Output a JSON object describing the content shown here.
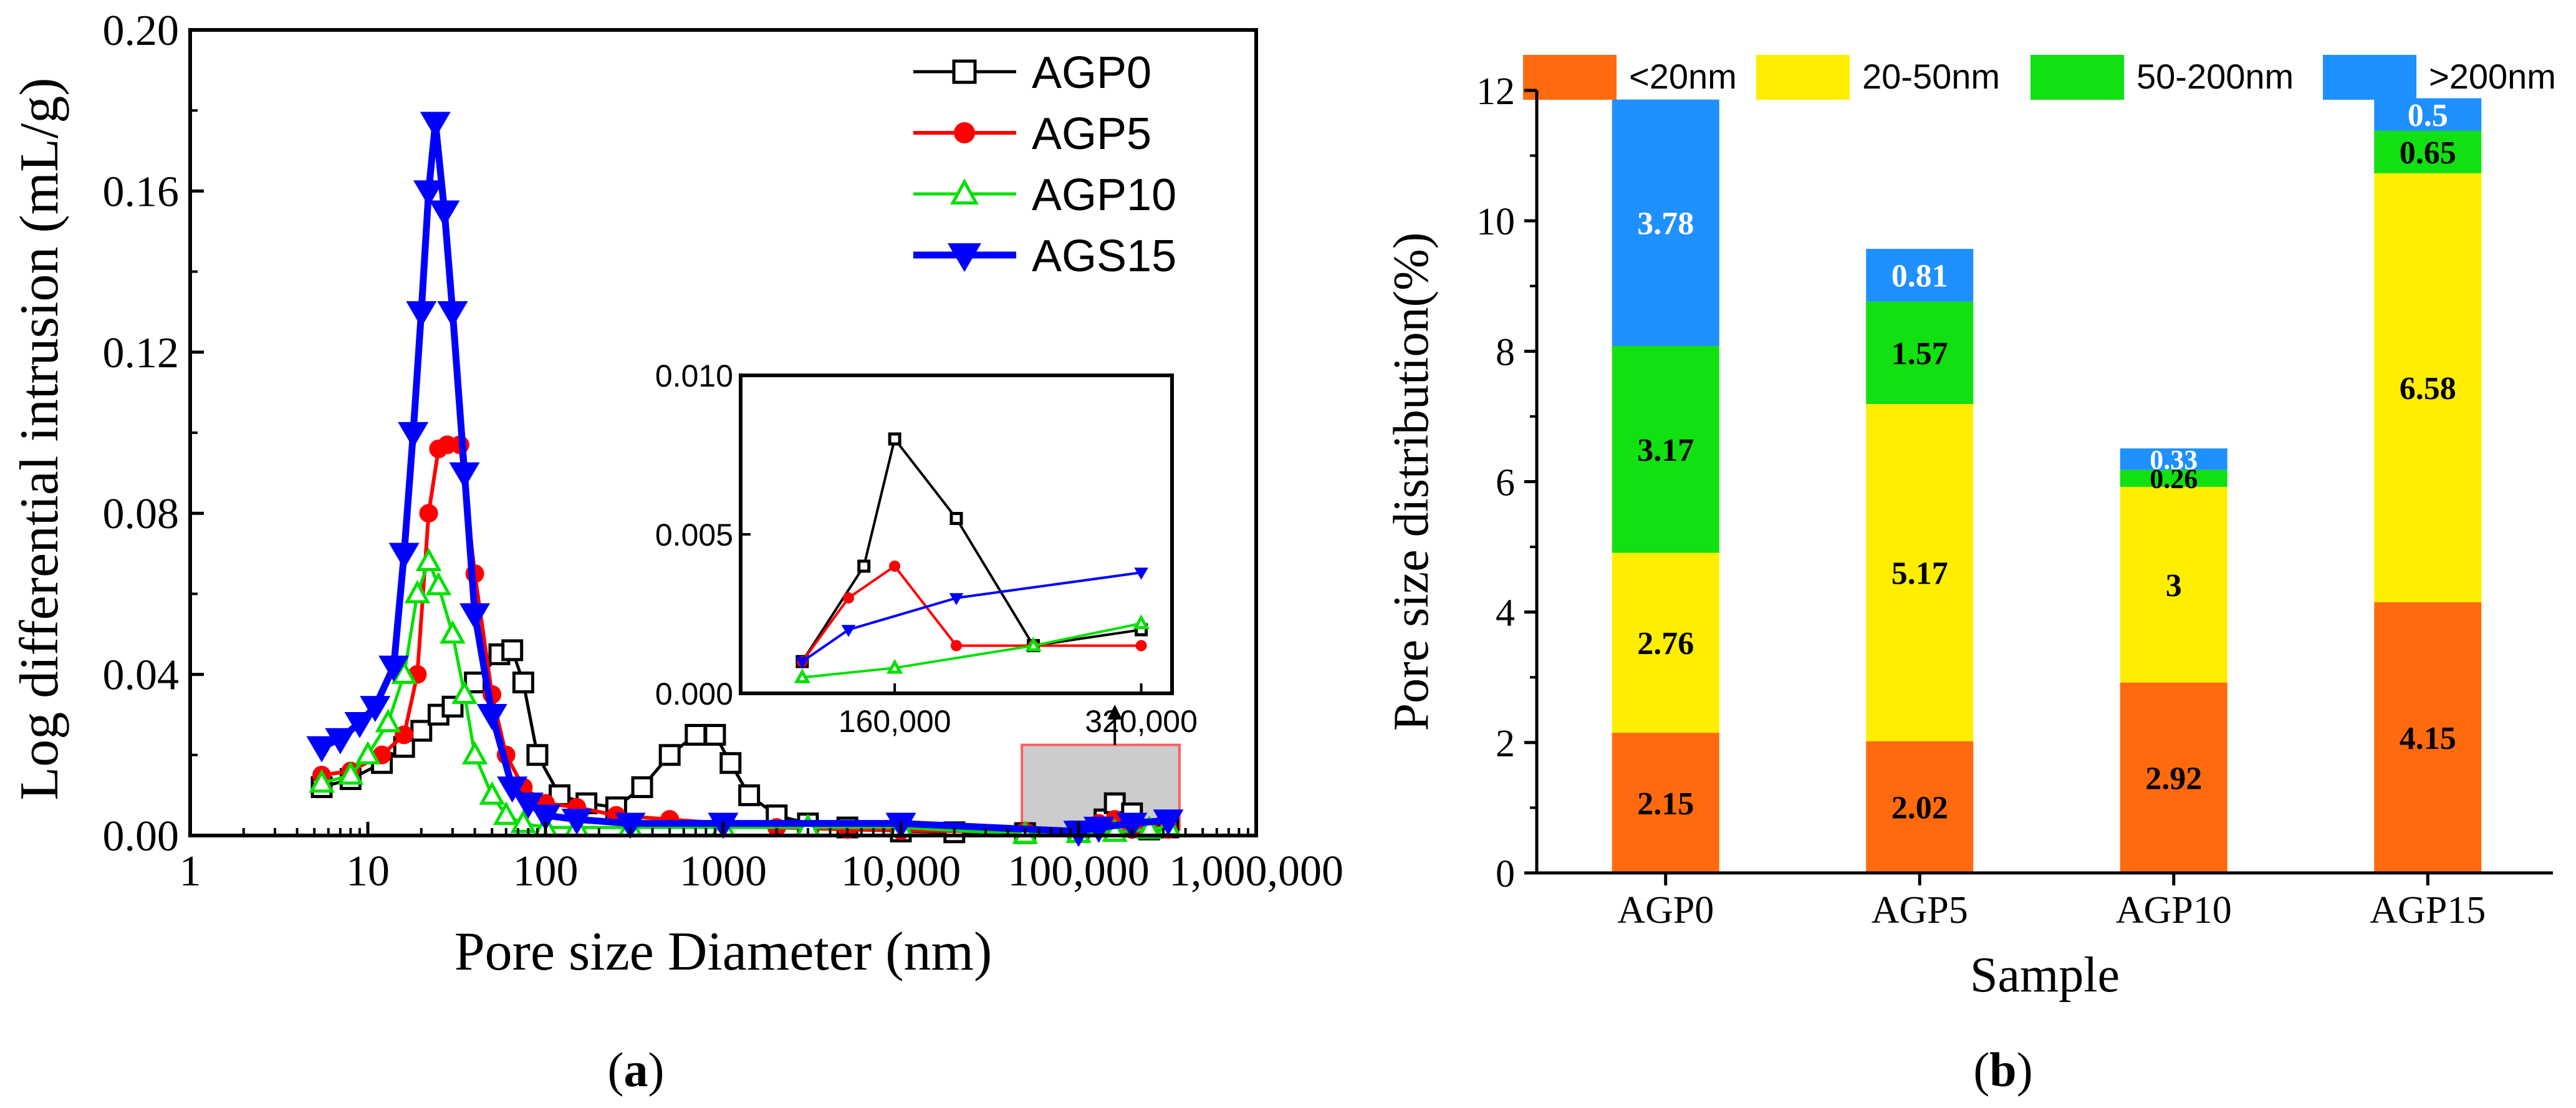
{
  "colors": {
    "AGP0": "#000000",
    "AGP5": "#ff0000",
    "AGP10": "#00e000",
    "AGS15": "#0000ff",
    "lt20": "#ff6a0e",
    "b20_50": "#ffee00",
    "b50_200": "#11e011",
    "gt200": "#1e90ff",
    "highlight_fill": "#cccccc",
    "highlight_stroke": "#ff6060"
  },
  "chart_data": [
    {
      "panel": "(a)",
      "panel_letter": "a",
      "type": "line",
      "title": "",
      "xlabel": "Pore size Diameter (nm)",
      "ylabel": "Log differential intrusion (mL/g)",
      "xscale": "log",
      "xlim": [
        1,
        1000000
      ],
      "ylim": [
        0,
        0.2
      ],
      "grid": false,
      "legend_position": "top-right",
      "x_tick_labels": [
        "1",
        "10",
        "100",
        "1000",
        "10,000",
        "100,000",
        "1,000,000"
      ],
      "y_tick_labels": [
        "0.00",
        "0.04",
        "0.08",
        "0.12",
        "0.16",
        "0.20"
      ],
      "series": [
        {
          "name": "AGP0",
          "marker": "open-square",
          "x": [
            5.5,
            8,
            12,
            16,
            20,
            25,
            30,
            40,
            55,
            65,
            75,
            90,
            120,
            170,
            250,
            350,
            500,
            700,
            900,
            1100,
            1400,
            2000,
            3000,
            5000,
            10000,
            20000,
            50000,
            100000,
            140000,
            160000,
            200000,
            250000,
            320000
          ],
          "y": [
            0.012,
            0.014,
            0.018,
            0.022,
            0.026,
            0.03,
            0.032,
            0.038,
            0.045,
            0.046,
            0.038,
            0.02,
            0.01,
            0.008,
            0.007,
            0.012,
            0.02,
            0.025,
            0.025,
            0.018,
            0.01,
            0.005,
            0.003,
            0.002,
            0.001,
            0.0008,
            0.0006,
            0.001,
            0.004,
            0.008,
            0.0055,
            0.0015,
            0.002
          ]
        },
        {
          "name": "AGP5",
          "marker": "filled-circle",
          "x": [
            5.5,
            8,
            12,
            16,
            19,
            22,
            25,
            28,
            33,
            40,
            50,
            60,
            75,
            100,
            150,
            250,
            500,
            1000,
            2000,
            5000,
            10000,
            50000,
            100000,
            130000,
            160000,
            200000,
            250000,
            320000
          ],
          "y": [
            0.015,
            0.016,
            0.02,
            0.025,
            0.04,
            0.08,
            0.096,
            0.097,
            0.097,
            0.065,
            0.035,
            0.02,
            0.012,
            0.008,
            0.007,
            0.005,
            0.004,
            0.003,
            0.002,
            0.0015,
            0.0012,
            0.001,
            0.001,
            0.003,
            0.004,
            0.0015,
            0.0015,
            0.0015
          ]
        },
        {
          "name": "AGP10",
          "marker": "open-triangle",
          "x": [
            5.5,
            8,
            10,
            13,
            16,
            19,
            22,
            25,
            30,
            35,
            40,
            50,
            60,
            75,
            100,
            150,
            300,
            1000,
            3000,
            10000,
            50000,
            100000,
            160000,
            250000,
            320000
          ],
          "y": [
            0.013,
            0.015,
            0.02,
            0.028,
            0.04,
            0.06,
            0.068,
            0.062,
            0.05,
            0.035,
            0.02,
            0.01,
            0.005,
            0.003,
            0.002,
            0.002,
            0.002,
            0.002,
            0.002,
            0.002,
            0.0003,
            0.0005,
            0.0008,
            0.0015,
            0.0022
          ]
        },
        {
          "name": "AGS15",
          "marker": "filled-down-triangle",
          "x": [
            5.5,
            7,
            9,
            11,
            14,
            16,
            18,
            20,
            22,
            24,
            27,
            30,
            35,
            40,
            50,
            65,
            80,
            100,
            150,
            300,
            1000,
            10000,
            100000,
            130000,
            200000,
            320000
          ],
          "y": [
            0.022,
            0.024,
            0.028,
            0.032,
            0.042,
            0.07,
            0.1,
            0.13,
            0.16,
            0.177,
            0.155,
            0.13,
            0.09,
            0.055,
            0.03,
            0.012,
            0.008,
            0.005,
            0.004,
            0.003,
            0.003,
            0.003,
            0.001,
            0.002,
            0.003,
            0.0038
          ]
        }
      ],
      "inset": {
        "xlim": [
          60000,
          340000
        ],
        "ylim": [
          0,
          0.01
        ],
        "x_tick_labels": [
          "160,000",
          "320,000"
        ],
        "y_tick_labels": [
          "0.000",
          "0.005",
          "0.010"
        ]
      }
    },
    {
      "panel": "(b)",
      "panel_letter": "b",
      "type": "bar",
      "stacked": true,
      "title": "",
      "xlabel": "Sample",
      "ylabel": "Pore size distribution(%)",
      "ylim": [
        0,
        12
      ],
      "grid": false,
      "legend_position": "top",
      "categories": [
        "AGP0",
        "AGP5",
        "AGP10",
        "AGP15"
      ],
      "y_tick_labels": [
        "0",
        "2",
        "4",
        "6",
        "8",
        "10",
        "12"
      ],
      "series": [
        {
          "name": "<20nm",
          "values": [
            2.15,
            2.02,
            2.92,
            4.15
          ],
          "labels": [
            "2.15",
            "2.02",
            "2.92",
            "4.15"
          ]
        },
        {
          "name": "20-50nm",
          "values": [
            2.76,
            5.17,
            3,
            6.58
          ],
          "labels": [
            "2.76",
            "5.17",
            "3",
            "6.58"
          ]
        },
        {
          "name": "50-200nm",
          "values": [
            3.17,
            1.57,
            0.26,
            0.65
          ],
          "labels": [
            "3.17",
            "1.57",
            "0.26",
            "0.65"
          ]
        },
        {
          "name": ">200nm",
          "values": [
            3.78,
            0.81,
            0.33,
            0.5
          ],
          "labels": [
            "3.78",
            "0.81",
            "0.33",
            "0.5"
          ]
        }
      ]
    }
  ]
}
